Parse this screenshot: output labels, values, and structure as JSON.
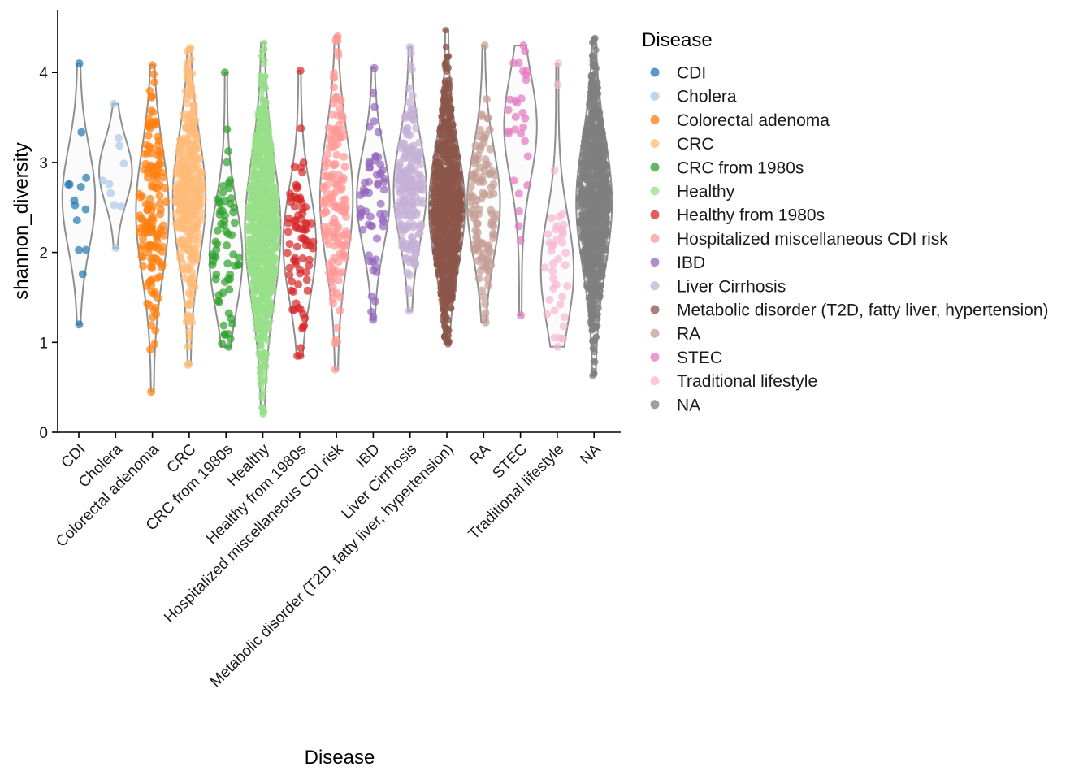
{
  "chart_data": {
    "type": "violin",
    "xlabel": "Disease",
    "ylabel": "shannon_diversity",
    "ylim": [
      0,
      4.6
    ],
    "y_ticks": [
      0,
      1,
      2,
      3,
      4
    ],
    "grid": false,
    "legend": {
      "title": "Disease",
      "position": "right"
    },
    "groups": [
      {
        "name": "CDI",
        "color": "#1f77b4",
        "n": 14,
        "min": 1.2,
        "max": 4.1,
        "center": 2.6,
        "dense": false
      },
      {
        "name": "Cholera",
        "color": "#aec7e8",
        "n": 10,
        "min": 2.05,
        "max": 3.65,
        "center": 2.9,
        "dense": false
      },
      {
        "name": "Colorectal adenoma",
        "color": "#ff7f0e",
        "n": 150,
        "min": 0.45,
        "max": 4.08,
        "center": 2.45,
        "dense": false
      },
      {
        "name": "CRC",
        "color": "#ffbb78",
        "n": 320,
        "min": 0.75,
        "max": 4.27,
        "center": 2.6,
        "dense": false
      },
      {
        "name": "CRC from 1980s",
        "color": "#2ca02c",
        "n": 65,
        "min": 0.95,
        "max": 4.0,
        "center": 1.95,
        "dense": false
      },
      {
        "name": "Healthy",
        "color": "#98df8a",
        "n": 3000,
        "min": 0.2,
        "max": 4.33,
        "center": 2.25,
        "dense": true
      },
      {
        "name": "Healthy from 1980s",
        "color": "#d62728",
        "n": 80,
        "min": 0.85,
        "max": 4.02,
        "center": 2.1,
        "dense": false
      },
      {
        "name": "Hospitalized miscellaneous CDI risk",
        "color": "#ff9896",
        "n": 160,
        "min": 0.7,
        "max": 4.4,
        "center": 2.6,
        "dense": false
      },
      {
        "name": "IBD",
        "color": "#9467bd",
        "n": 60,
        "min": 1.25,
        "max": 4.05,
        "center": 2.6,
        "dense": false
      },
      {
        "name": "Liver Cirrhosis",
        "color": "#c5b0d5",
        "n": 200,
        "min": 1.35,
        "max": 4.28,
        "center": 2.7,
        "dense": false
      },
      {
        "name": "Metabolic disorder (T2D, fatty liver, hypertension)",
        "color": "#8c564b",
        "n": 1500,
        "min": 0.98,
        "max": 4.47,
        "center": 2.5,
        "dense": true
      },
      {
        "name": "RA",
        "color": "#c49c94",
        "n": 110,
        "min": 1.22,
        "max": 4.3,
        "center": 2.55,
        "dense": false
      },
      {
        "name": "STEC",
        "color": "#e377c2",
        "n": 30,
        "min": 1.3,
        "max": 4.3,
        "center": 3.4,
        "dense": false
      },
      {
        "name": "Traditional lifestyle",
        "color": "#f7b6d2",
        "n": 40,
        "min": 0.95,
        "max": 4.1,
        "center": 1.8,
        "dense": false
      },
      {
        "name": "NA",
        "color": "#7f7f7f",
        "n": 1500,
        "min": 0.63,
        "max": 4.38,
        "center": 2.55,
        "dense": true
      }
    ]
  }
}
